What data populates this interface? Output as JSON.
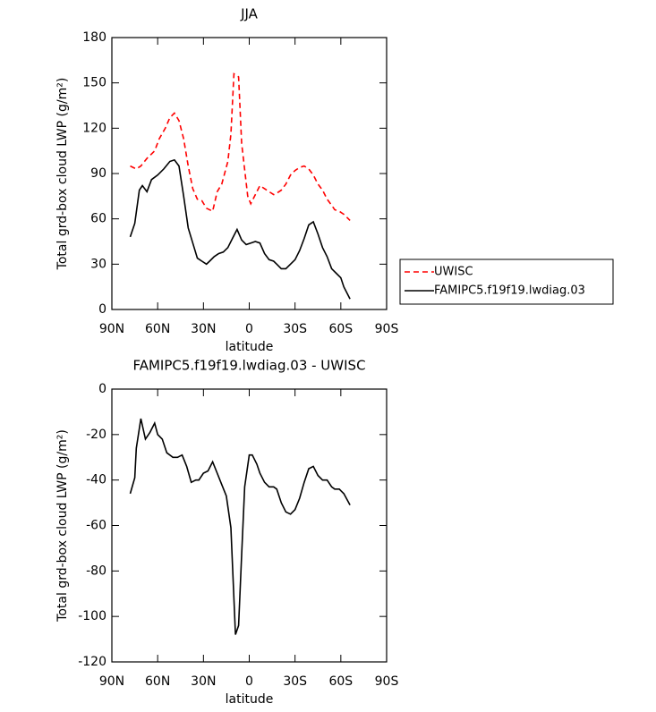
{
  "chart_data": [
    {
      "type": "line",
      "title": "JJA",
      "xlabel": "latitude",
      "ylabel": "Total grd-box cloud LWP (g/m²)",
      "xlim": [
        90,
        -90
      ],
      "xticks": [
        {
          "value": 90,
          "label": "90N"
        },
        {
          "value": 60,
          "label": "60N"
        },
        {
          "value": 30,
          "label": "30N"
        },
        0,
        {
          "value": -30,
          "label": "30S"
        },
        {
          "value": -60,
          "label": "60S"
        },
        {
          "value": -90,
          "label": "90S"
        }
      ],
      "ylim": [
        0,
        180
      ],
      "yticks": [
        0,
        30,
        60,
        90,
        120,
        150,
        180
      ],
      "legend": "right",
      "series": [
        {
          "name": "UWISC",
          "color": "#ff0000",
          "dash": "dashed",
          "x": [
            78,
            74,
            71,
            67,
            62,
            59,
            55,
            52,
            49,
            46,
            43,
            40,
            37,
            34,
            31,
            28,
            24,
            21,
            18,
            14,
            12,
            10,
            7,
            5,
            1,
            -1,
            -4,
            -7,
            -10,
            -13,
            -16,
            -18,
            -21,
            -24,
            -27,
            -30,
            -33,
            -36,
            -39,
            -42,
            -45,
            -48,
            -51,
            -54,
            -56,
            -59,
            -62,
            -66
          ],
          "values": [
            95,
            93,
            95,
            100,
            105,
            113,
            120,
            127,
            130,
            125,
            113,
            95,
            80,
            73,
            72,
            67,
            65,
            78,
            83,
            98,
            116,
            156,
            154,
            110,
            75,
            70,
            76,
            82,
            80,
            78,
            76,
            77,
            79,
            83,
            89,
            92,
            94,
            95,
            93,
            89,
            83,
            79,
            73,
            69,
            66,
            65,
            63,
            59
          ]
        },
        {
          "name": "FAMIPC5.f19f19.lwdiag.03",
          "color": "#000000",
          "dash": "solid",
          "x": [
            78,
            75,
            72,
            70,
            67,
            64,
            60,
            56,
            52,
            49,
            46,
            43,
            40,
            37,
            34,
            31,
            28,
            26,
            23,
            20,
            17,
            14,
            11,
            8,
            5,
            2,
            -1,
            -4,
            -7,
            -10,
            -13,
            -16,
            -18,
            -21,
            -24,
            -27,
            -30,
            -33,
            -36,
            -39,
            -42,
            -45,
            -48,
            -51,
            -54,
            -57,
            -60,
            -62,
            -66
          ],
          "values": [
            48,
            57,
            79,
            82,
            78,
            86,
            89,
            93,
            98,
            99,
            95,
            75,
            54,
            44,
            34,
            32,
            30,
            32,
            35,
            37,
            38,
            41,
            47,
            53,
            46,
            43,
            44,
            45,
            44,
            37,
            33,
            32,
            30,
            27,
            27,
            30,
            33,
            39,
            47,
            56,
            58,
            50,
            41,
            35,
            27,
            24,
            21,
            15,
            7
          ]
        }
      ]
    },
    {
      "type": "line",
      "title": "FAMIPC5.f19f19.lwdiag.03 - UWISC",
      "xlabel": "latitude",
      "ylabel": "Total grd-box cloud LWP (g/m²)",
      "xlim": [
        90,
        -90
      ],
      "xticks": [
        {
          "value": 90,
          "label": "90N"
        },
        {
          "value": 60,
          "label": "60N"
        },
        {
          "value": 30,
          "label": "30N"
        },
        0,
        {
          "value": -30,
          "label": "30S"
        },
        {
          "value": -60,
          "label": "60S"
        },
        {
          "value": -90,
          "label": "90S"
        }
      ],
      "ylim": [
        -120,
        0
      ],
      "yticks": [
        -120,
        -100,
        -80,
        -60,
        -40,
        -20,
        0
      ],
      "color": "#000000",
      "x": [
        78,
        75,
        74,
        71,
        68,
        65,
        62,
        60,
        57,
        54,
        50,
        47,
        44,
        41,
        38,
        35,
        33,
        30,
        27,
        24,
        21,
        18,
        15,
        12,
        9,
        7,
        5,
        3,
        0,
        -2,
        -5,
        -7,
        -10,
        -13,
        -16,
        -18,
        -21,
        -24,
        -27,
        -30,
        -33,
        -36,
        -39,
        -42,
        -45,
        -48,
        -51,
        -54,
        -56,
        -59,
        -62,
        -66
      ],
      "values": [
        -46,
        -39,
        -26,
        -13,
        -22,
        -19,
        -15,
        -20,
        -22,
        -28,
        -30,
        -30,
        -29,
        -34,
        -41,
        -40,
        -40,
        -37,
        -36,
        -32,
        -37,
        -42,
        -47,
        -61,
        -108,
        -104,
        -73,
        -43,
        -29,
        -29,
        -33,
        -37,
        -41,
        -43,
        -43,
        -44,
        -50,
        -54,
        -55,
        -53,
        -48,
        -41,
        -35,
        -34,
        -38,
        -40,
        -40,
        -43,
        -44,
        -44,
        -46,
        -51
      ]
    }
  ]
}
